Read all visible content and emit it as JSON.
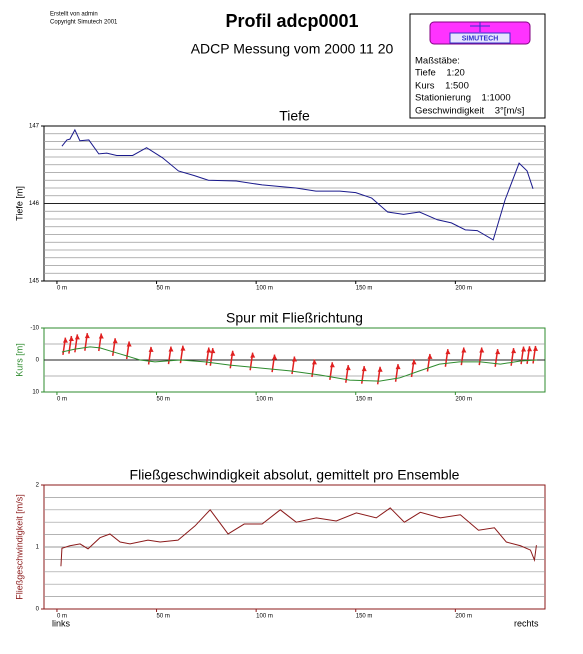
{
  "header": {
    "created": "Erstellt von admin",
    "copyright": "Copyright Simutech 2001",
    "title": "Profil adcp0001",
    "subtitle": "ADCP Messung vom 2000 11 20",
    "logo": "SIMUTECH",
    "scales_title": "Maßstäbe:",
    "scales": [
      "Tiefe    1:20",
      "Kurs    1:500",
      "Stationierung    1:1000",
      "Geschwindigkeit    3°[m/s]"
    ]
  },
  "chart_data": [
    {
      "type": "line",
      "title": "Tiefe",
      "ylabel": "Tiefe [m]",
      "axis_color": "#000000",
      "color": "#1a1a8c",
      "xlim": [
        -6.5,
        245
      ],
      "ylim": [
        145,
        147
      ],
      "xticks": [
        {
          "value": 0,
          "label": "0 m"
        },
        {
          "value": 50,
          "label": "50 m"
        },
        {
          "value": 100,
          "label": "100 m"
        },
        {
          "value": 150,
          "label": "150 m"
        },
        {
          "value": 200,
          "label": "200 m"
        }
      ],
      "yticks": [
        145,
        146,
        147
      ],
      "grid_lines": [
        145.1,
        145.2,
        145.3,
        145.4,
        145.5,
        145.6,
        145.7,
        145.8,
        145.9,
        146.1,
        146.2,
        146.3,
        146.4,
        146.5,
        146.6,
        146.7,
        146.8,
        146.9
      ],
      "x": [
        2.5,
        5,
        6.5,
        9,
        11.5,
        16,
        21,
        25,
        30,
        38,
        45,
        53,
        61,
        69,
        76,
        90,
        103,
        120,
        130,
        142,
        150,
        158,
        166,
        174,
        182,
        191,
        198,
        205,
        211,
        219,
        225,
        232,
        236,
        239
      ],
      "values": [
        146.74,
        146.82,
        146.83,
        146.95,
        146.81,
        146.82,
        146.64,
        146.65,
        146.62,
        146.62,
        146.72,
        146.59,
        146.42,
        146.36,
        146.3,
        146.29,
        146.24,
        146.2,
        146.16,
        146.16,
        146.14,
        146.07,
        145.89,
        145.86,
        145.89,
        145.79,
        145.75,
        145.66,
        145.65,
        145.53,
        146.05,
        146.52,
        146.42,
        146.19
      ]
    },
    {
      "type": "line",
      "title": "Spur mit Fließrichtung",
      "ylabel": "Kurs [m]",
      "axis_color": "#2e8b2e",
      "color": "#2e8b2e",
      "xlim": [
        -6.5,
        245
      ],
      "ylim": [
        10,
        -10
      ],
      "xticks": [
        {
          "value": 0,
          "label": "0 m"
        },
        {
          "value": 50,
          "label": "50 m"
        },
        {
          "value": 100,
          "label": "100 m"
        },
        {
          "value": 150,
          "label": "150 m"
        },
        {
          "value": 200,
          "label": "200 m"
        }
      ],
      "yticks": [
        10,
        0,
        -10
      ],
      "grid_lines": [
        -5,
        5
      ],
      "x": [
        2.5,
        9,
        16.6,
        21.6,
        31.7,
        41.7,
        49.2,
        61.8,
        74.4,
        86.9,
        102,
        117,
        132,
        147,
        162,
        172,
        182,
        192,
        202,
        212.6,
        222.6,
        232.7,
        241
      ],
      "values": [
        -2.5,
        -3.4,
        -4.1,
        -3.8,
        -1.9,
        0,
        0.6,
        0,
        0.6,
        1.6,
        2.5,
        3.4,
        4.7,
        6.3,
        6.6,
        5.6,
        3.4,
        1.3,
        0.6,
        0.6,
        1.3,
        0.3,
        0
      ],
      "arrow_color": "#e02020",
      "arrows": [
        {
          "x": 3,
          "y0": -1.6,
          "y1": -7
        },
        {
          "x": 6,
          "y0": -2,
          "y1": -7.5
        },
        {
          "x": 9,
          "y0": -2.4,
          "y1": -8
        },
        {
          "x": 14,
          "y0": -2.9,
          "y1": -8.4
        },
        {
          "x": 21,
          "y0": -2.8,
          "y1": -8.3
        },
        {
          "x": 28,
          "y0": -1.3,
          "y1": -6.8
        },
        {
          "x": 35,
          "y0": -0.3,
          "y1": -5.8
        },
        {
          "x": 46,
          "y0": 1.4,
          "y1": -4.1
        },
        {
          "x": 56,
          "y0": 1.3,
          "y1": -4.2
        },
        {
          "x": 62,
          "y0": 1,
          "y1": -4.5
        },
        {
          "x": 75,
          "y0": 1.6,
          "y1": -3.9
        },
        {
          "x": 77,
          "y0": 1.8,
          "y1": -3.7
        },
        {
          "x": 87,
          "y0": 2.6,
          "y1": -2.9
        },
        {
          "x": 97,
          "y0": 3.2,
          "y1": -2.3
        },
        {
          "x": 108,
          "y0": 3.8,
          "y1": -1.7
        },
        {
          "x": 118,
          "y0": 4.4,
          "y1": -1.1
        },
        {
          "x": 128,
          "y0": 5.3,
          "y1": -0.2
        },
        {
          "x": 137,
          "y0": 6.2,
          "y1": 0.7
        },
        {
          "x": 145,
          "y0": 7.1,
          "y1": 1.6
        },
        {
          "x": 153,
          "y0": 7.4,
          "y1": 1.9
        },
        {
          "x": 161,
          "y0": 7.6,
          "y1": 2.1
        },
        {
          "x": 170,
          "y0": 6.8,
          "y1": 1.3
        },
        {
          "x": 178,
          "y0": 5.3,
          "y1": -0.2
        },
        {
          "x": 186,
          "y0": 3.6,
          "y1": -1.9
        },
        {
          "x": 195,
          "y0": 2.1,
          "y1": -3.4
        },
        {
          "x": 203,
          "y0": 1.6,
          "y1": -3.9
        },
        {
          "x": 212,
          "y0": 1.6,
          "y1": -3.9
        },
        {
          "x": 220,
          "y0": 2.1,
          "y1": -3.4
        },
        {
          "x": 228,
          "y0": 1.8,
          "y1": -3.7
        },
        {
          "x": 233,
          "y0": 1.3,
          "y1": -4.2
        },
        {
          "x": 236,
          "y0": 1.2,
          "y1": -4.3
        },
        {
          "x": 239,
          "y0": 1.1,
          "y1": -4.4
        }
      ]
    },
    {
      "type": "line",
      "title": "Fließgeschwindigkeit absolut, gemittelt pro Ensemble",
      "ylabel": "Fließgeschwindigkeit [m/s]",
      "axis_color": "#8b1a1a",
      "color": "#8b1a1a",
      "xlim": [
        -6.5,
        245
      ],
      "ylim": [
        0,
        2
      ],
      "xticks": [
        {
          "value": 0,
          "label": "0 m"
        },
        {
          "value": 50,
          "label": "50 m"
        },
        {
          "value": 100,
          "label": "100 m"
        },
        {
          "value": 150,
          "label": "150 m"
        },
        {
          "value": 200,
          "label": "200 m"
        }
      ],
      "yticks": [
        0,
        1,
        2
      ],
      "grid_lines": [
        0.2,
        0.4,
        0.6,
        0.8,
        1.2,
        1.4,
        1.6,
        1.8
      ],
      "x": [
        2,
        2.5,
        6.5,
        11.6,
        15.6,
        21.6,
        26.6,
        31.7,
        36.7,
        45.7,
        51.8,
        60.8,
        69.3,
        76.9,
        85.9,
        94,
        103,
        112.1,
        120.1,
        130.2,
        140.2,
        150.3,
        160.3,
        167.3,
        174.4,
        182.4,
        192.5,
        202.5,
        211.6,
        219.6,
        225.6,
        232.7,
        237.7,
        239.7,
        240.7
      ],
      "values": [
        0.69,
        0.98,
        1.02,
        1.05,
        0.97,
        1.15,
        1.21,
        1.08,
        1.05,
        1.11,
        1.08,
        1.11,
        1.34,
        1.6,
        1.21,
        1.37,
        1.37,
        1.6,
        1.4,
        1.47,
        1.42,
        1.55,
        1.47,
        1.63,
        1.4,
        1.56,
        1.47,
        1.52,
        1.27,
        1.31,
        1.08,
        1.02,
        0.95,
        0.79,
        1.03
      ]
    }
  ],
  "footer": {
    "left": "links",
    "right": "rechts"
  }
}
